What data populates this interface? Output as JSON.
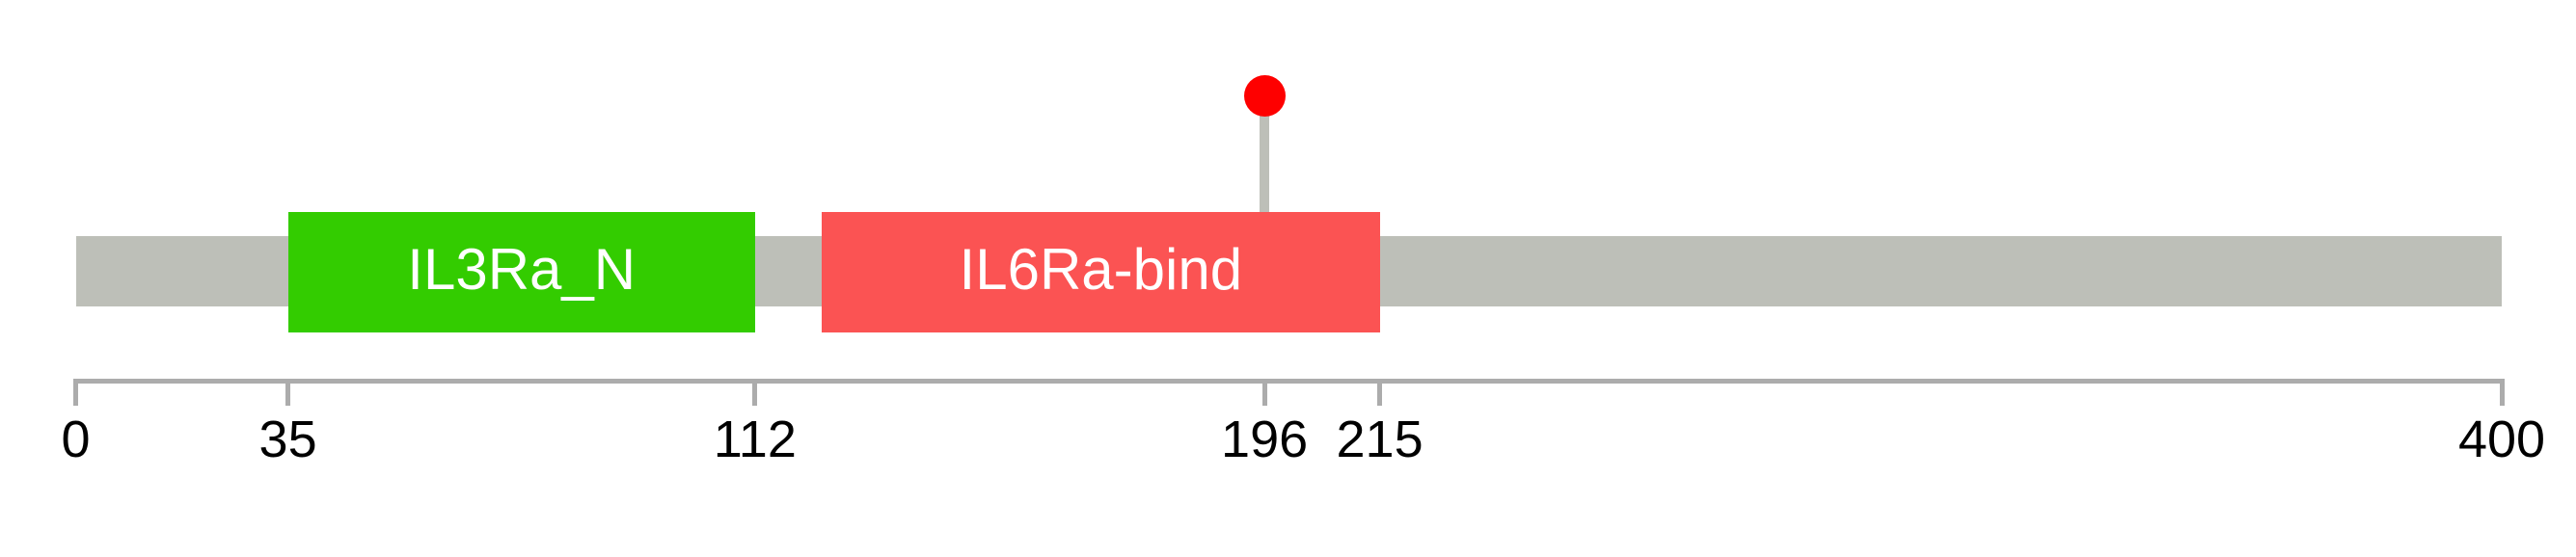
{
  "figure": {
    "background": "#ffffff"
  },
  "chart_data": {
    "type": "lollipop",
    "title": "",
    "description": "Protein domain architecture track with one mutation lollipop",
    "axis": {
      "label": "",
      "min": 0,
      "max": 400,
      "ticks": [
        0,
        35,
        112,
        196,
        215,
        400
      ],
      "tick_labels": [
        "0",
        "35",
        "112",
        "196",
        "215",
        "400"
      ],
      "grid": false
    },
    "backbone": {
      "start": 0,
      "end": 400,
      "color": "#bdbfb8"
    },
    "domains": [
      {
        "label": "IL3Ra_N",
        "start": 35,
        "end": 112,
        "color": "#33cc00",
        "text_color": "#ffffff"
      },
      {
        "label": "IL6Ra-bind",
        "start": 123,
        "end": 215,
        "color": "#fb5353",
        "text_color": "#ffffff"
      }
    ],
    "markers": [
      {
        "position": 196,
        "head_color": "#fe0000",
        "stick_color": "#bdbfb8"
      }
    ],
    "styles": {
      "axis_color": "#acacac",
      "tick_label_color": "#000000",
      "background": "#ffffff"
    }
  }
}
